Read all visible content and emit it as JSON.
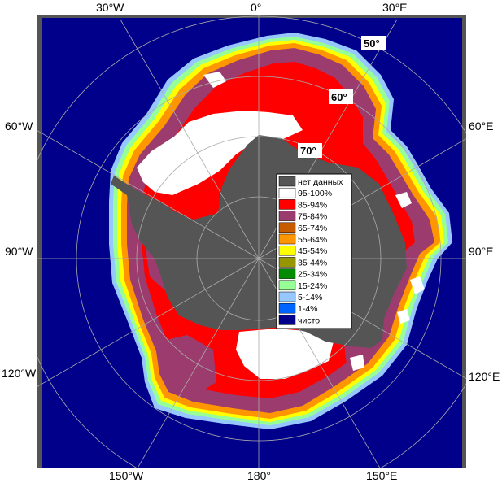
{
  "map": {
    "colors": {
      "ocean": "#00008b",
      "land": "#555555",
      "frame": "#555555",
      "grid": "#aaaaaa"
    },
    "lon_labels_top": [
      "30°W",
      "0°",
      "30°E"
    ],
    "lon_labels_left": [
      "60°W",
      "90°W",
      "120°W"
    ],
    "lon_labels_right": [
      "60°E",
      "90°E",
      "120°E"
    ],
    "lon_labels_bottom": [
      "150°W",
      "180°",
      "150°E"
    ],
    "lat_labels": [
      "50°",
      "60°",
      "70°"
    ]
  },
  "legend": {
    "items": [
      {
        "label": "нет данных",
        "color": "#555555"
      },
      {
        "label": "95-100%",
        "color": "#ffffff"
      },
      {
        "label": "85-94%",
        "color": "#ff0000"
      },
      {
        "label": "75-84%",
        "color": "#9c3c6e"
      },
      {
        "label": "65-74%",
        "color": "#c85a00"
      },
      {
        "label": "55-64%",
        "color": "#ff9600"
      },
      {
        "label": "45-54%",
        "color": "#ffff00"
      },
      {
        "label": "35-44%",
        "color": "#969600"
      },
      {
        "label": "25-34%",
        "color": "#008c00"
      },
      {
        "label": "15-24%",
        "color": "#96ff96"
      },
      {
        "label": "5-14%",
        "color": "#96c8ff"
      },
      {
        "label": "1-4%",
        "color": "#0064ff"
      },
      {
        "label": "чисто",
        "color": "#00008b"
      }
    ]
  }
}
